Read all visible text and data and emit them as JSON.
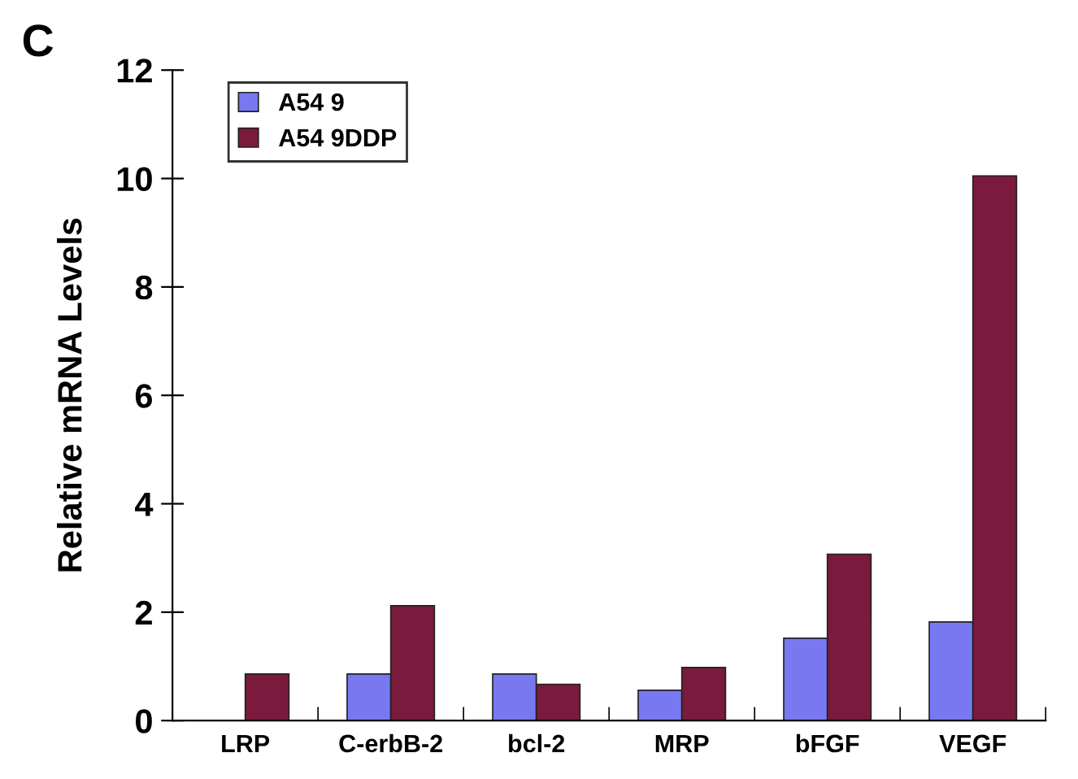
{
  "chart_data": {
    "type": "bar",
    "ylabel": "Relative mRNA Levels",
    "annotations": [
      "C"
    ],
    "categories": [
      "LRP",
      "C-erbB-2",
      "bcl-2",
      "MRP",
      "bFGF",
      "VEGF"
    ],
    "series": [
      {
        "name": "A54 9",
        "color": "#7878f0",
        "values": [
          null,
          0.86,
          0.86,
          0.56,
          1.52,
          1.82
        ]
      },
      {
        "name": "A54 9DDP",
        "color": "#7a1a3c",
        "values": [
          0.86,
          2.12,
          0.67,
          0.98,
          3.07,
          10.05
        ]
      }
    ],
    "ylim": [
      0,
      12
    ],
    "yticks": [
      0,
      2,
      4,
      6,
      8,
      10,
      12
    ],
    "grid": false,
    "legend": "top left"
  }
}
